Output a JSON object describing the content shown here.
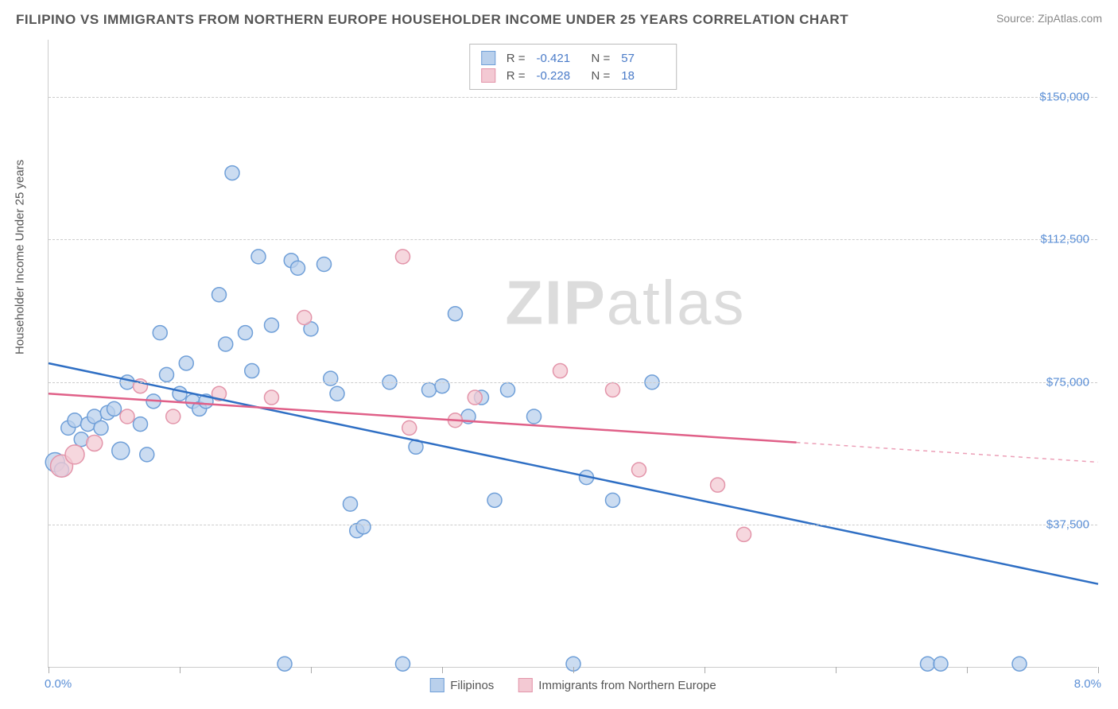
{
  "title": "FILIPINO VS IMMIGRANTS FROM NORTHERN EUROPE HOUSEHOLDER INCOME UNDER 25 YEARS CORRELATION CHART",
  "source": "Source: ZipAtlas.com",
  "ylabel": "Householder Income Under 25 years",
  "watermark_bold": "ZIP",
  "watermark_light": "atlas",
  "chart": {
    "type": "scatter",
    "xlim": [
      0.0,
      8.0
    ],
    "ylim": [
      0,
      165000
    ],
    "x_min_label": "0.0%",
    "x_max_label": "8.0%",
    "y_ticks": [
      37500,
      75000,
      112500,
      150000
    ],
    "y_tick_labels": [
      "$37,500",
      "$75,000",
      "$112,500",
      "$150,000"
    ],
    "x_ticks": [
      0,
      1,
      2,
      3,
      4,
      5,
      6,
      7,
      8
    ],
    "background": "#ffffff",
    "grid_color": "#cccccc",
    "axis_label_color": "#5b8fd6"
  },
  "series": [
    {
      "name": "Filipinos",
      "color_fill": "#b9d0ec",
      "color_stroke": "#6f9fd8",
      "line_color": "#2f6fc4",
      "swatch_fill": "#b9d0ec",
      "swatch_stroke": "#6f9fd8",
      "R": "-0.421",
      "N": "57",
      "trend": {
        "x1": 0.0,
        "y1": 80000,
        "x2": 8.0,
        "y2": 22000,
        "solid_until": 8.0
      },
      "points": [
        {
          "x": 0.05,
          "y": 54000,
          "r": 12
        },
        {
          "x": 0.1,
          "y": 52000,
          "r": 9
        },
        {
          "x": 0.15,
          "y": 63000,
          "r": 9
        },
        {
          "x": 0.2,
          "y": 65000,
          "r": 9
        },
        {
          "x": 0.25,
          "y": 60000,
          "r": 9
        },
        {
          "x": 0.3,
          "y": 64000,
          "r": 9
        },
        {
          "x": 0.35,
          "y": 66000,
          "r": 9
        },
        {
          "x": 0.4,
          "y": 63000,
          "r": 9
        },
        {
          "x": 0.45,
          "y": 67000,
          "r": 9
        },
        {
          "x": 0.5,
          "y": 68000,
          "r": 9
        },
        {
          "x": 0.55,
          "y": 57000,
          "r": 11
        },
        {
          "x": 0.6,
          "y": 75000,
          "r": 9
        },
        {
          "x": 0.7,
          "y": 64000,
          "r": 9
        },
        {
          "x": 0.75,
          "y": 56000,
          "r": 9
        },
        {
          "x": 0.8,
          "y": 70000,
          "r": 9
        },
        {
          "x": 0.85,
          "y": 88000,
          "r": 9
        },
        {
          "x": 0.9,
          "y": 77000,
          "r": 9
        },
        {
          "x": 1.0,
          "y": 72000,
          "r": 9
        },
        {
          "x": 1.05,
          "y": 80000,
          "r": 9
        },
        {
          "x": 1.1,
          "y": 70000,
          "r": 9
        },
        {
          "x": 1.15,
          "y": 68000,
          "r": 9
        },
        {
          "x": 1.2,
          "y": 70000,
          "r": 9
        },
        {
          "x": 1.3,
          "y": 98000,
          "r": 9
        },
        {
          "x": 1.35,
          "y": 85000,
          "r": 9
        },
        {
          "x": 1.4,
          "y": 130000,
          "r": 9
        },
        {
          "x": 1.5,
          "y": 88000,
          "r": 9
        },
        {
          "x": 1.55,
          "y": 78000,
          "r": 9
        },
        {
          "x": 1.6,
          "y": 108000,
          "r": 9
        },
        {
          "x": 1.7,
          "y": 90000,
          "r": 9
        },
        {
          "x": 1.8,
          "y": 1000,
          "r": 9
        },
        {
          "x": 1.85,
          "y": 107000,
          "r": 9
        },
        {
          "x": 1.9,
          "y": 105000,
          "r": 9
        },
        {
          "x": 2.0,
          "y": 89000,
          "r": 9
        },
        {
          "x": 2.1,
          "y": 106000,
          "r": 9
        },
        {
          "x": 2.15,
          "y": 76000,
          "r": 9
        },
        {
          "x": 2.2,
          "y": 72000,
          "r": 9
        },
        {
          "x": 2.3,
          "y": 43000,
          "r": 9
        },
        {
          "x": 2.35,
          "y": 36000,
          "r": 9
        },
        {
          "x": 2.4,
          "y": 37000,
          "r": 9
        },
        {
          "x": 2.6,
          "y": 75000,
          "r": 9
        },
        {
          "x": 2.7,
          "y": 1000,
          "r": 9
        },
        {
          "x": 2.8,
          "y": 58000,
          "r": 9
        },
        {
          "x": 2.9,
          "y": 73000,
          "r": 9
        },
        {
          "x": 3.0,
          "y": 74000,
          "r": 9
        },
        {
          "x": 3.1,
          "y": 93000,
          "r": 9
        },
        {
          "x": 3.2,
          "y": 66000,
          "r": 9
        },
        {
          "x": 3.3,
          "y": 71000,
          "r": 9
        },
        {
          "x": 3.4,
          "y": 44000,
          "r": 9
        },
        {
          "x": 3.5,
          "y": 73000,
          "r": 9
        },
        {
          "x": 3.7,
          "y": 66000,
          "r": 9
        },
        {
          "x": 4.0,
          "y": 1000,
          "r": 9
        },
        {
          "x": 4.1,
          "y": 50000,
          "r": 9
        },
        {
          "x": 4.3,
          "y": 44000,
          "r": 9
        },
        {
          "x": 4.6,
          "y": 75000,
          "r": 9
        },
        {
          "x": 6.7,
          "y": 1000,
          "r": 9
        },
        {
          "x": 6.8,
          "y": 1000,
          "r": 9
        },
        {
          "x": 7.4,
          "y": 1000,
          "r": 9
        }
      ]
    },
    {
      "name": "Immigrants from Northern Europe",
      "color_fill": "#f3c9d3",
      "color_stroke": "#e395aa",
      "line_color": "#e06088",
      "swatch_fill": "#f3c9d3",
      "swatch_stroke": "#e395aa",
      "R": "-0.228",
      "N": "18",
      "trend": {
        "x1": 0.0,
        "y1": 72000,
        "x2": 8.0,
        "y2": 54000,
        "solid_until": 5.7
      },
      "points": [
        {
          "x": 0.1,
          "y": 53000,
          "r": 14
        },
        {
          "x": 0.2,
          "y": 56000,
          "r": 12
        },
        {
          "x": 0.35,
          "y": 59000,
          "r": 10
        },
        {
          "x": 0.6,
          "y": 66000,
          "r": 9
        },
        {
          "x": 0.7,
          "y": 74000,
          "r": 9
        },
        {
          "x": 0.95,
          "y": 66000,
          "r": 9
        },
        {
          "x": 1.3,
          "y": 72000,
          "r": 9
        },
        {
          "x": 1.7,
          "y": 71000,
          "r": 9
        },
        {
          "x": 1.95,
          "y": 92000,
          "r": 9
        },
        {
          "x": 2.7,
          "y": 108000,
          "r": 9
        },
        {
          "x": 2.75,
          "y": 63000,
          "r": 9
        },
        {
          "x": 3.1,
          "y": 65000,
          "r": 9
        },
        {
          "x": 3.25,
          "y": 71000,
          "r": 9
        },
        {
          "x": 3.9,
          "y": 78000,
          "r": 9
        },
        {
          "x": 4.3,
          "y": 73000,
          "r": 9
        },
        {
          "x": 4.5,
          "y": 52000,
          "r": 9
        },
        {
          "x": 5.1,
          "y": 48000,
          "r": 9
        },
        {
          "x": 5.3,
          "y": 35000,
          "r": 9
        }
      ]
    }
  ],
  "legend_labels": {
    "R": "R =",
    "N": "N ="
  }
}
